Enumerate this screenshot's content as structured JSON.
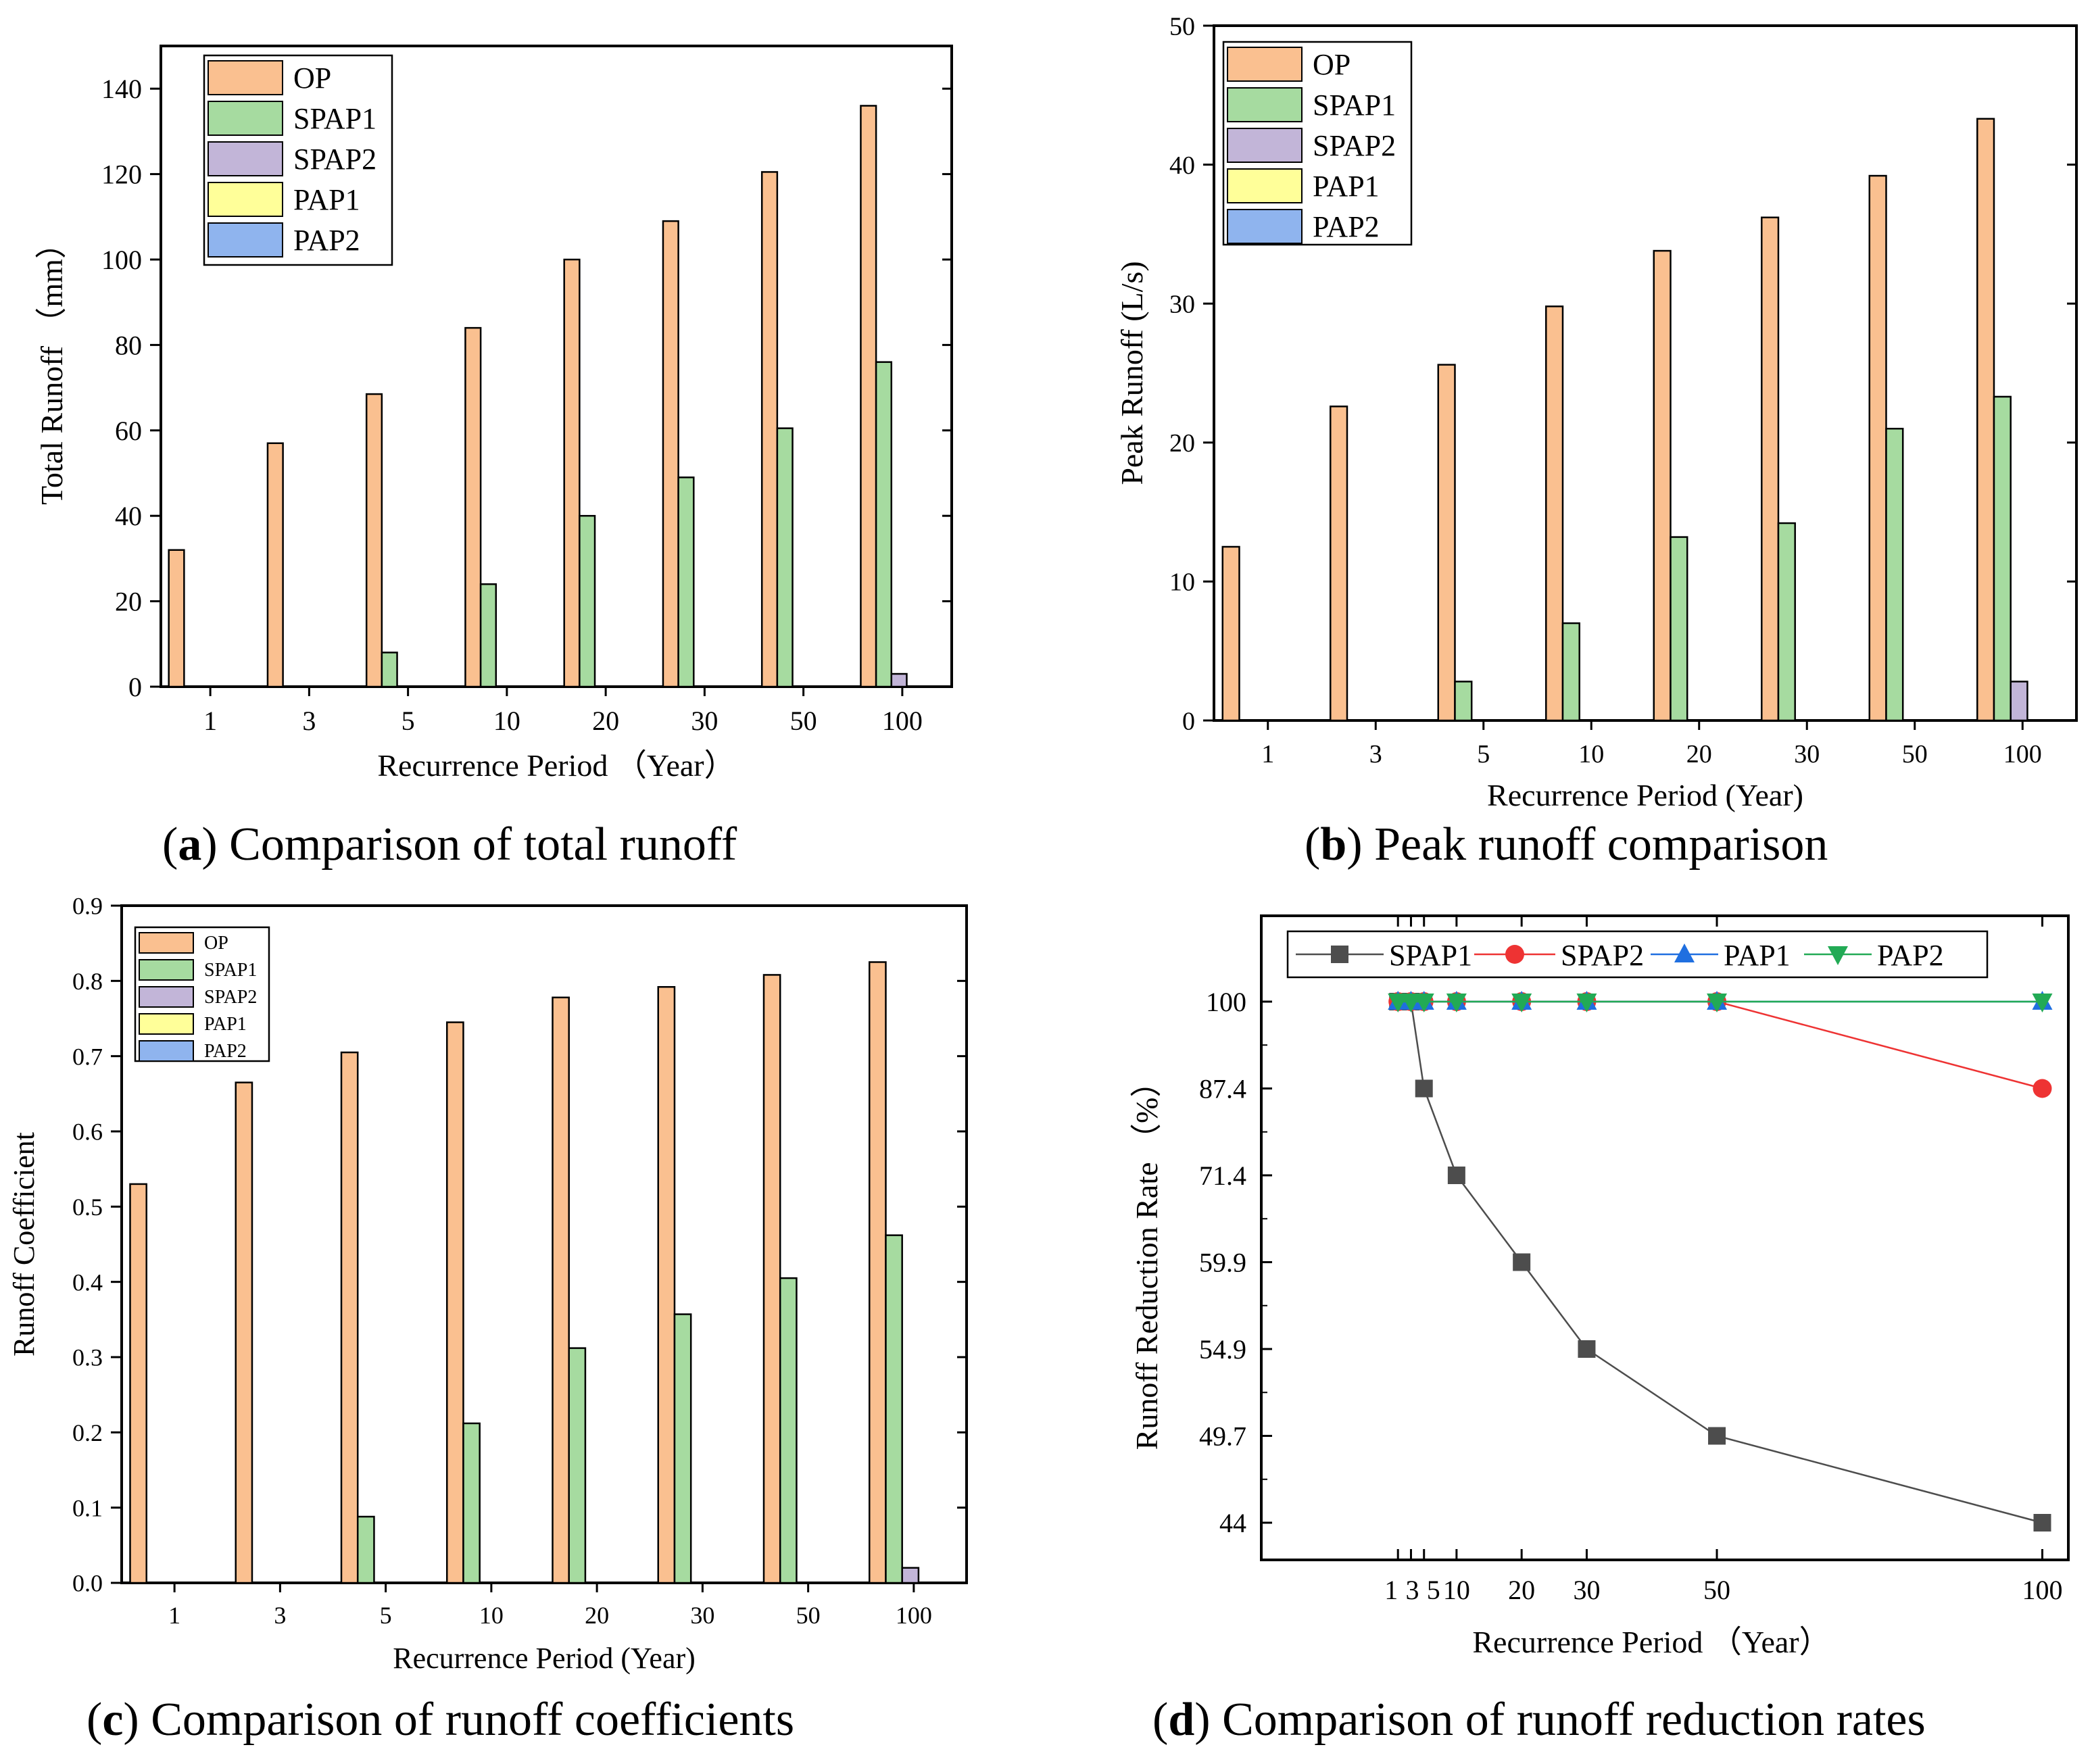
{
  "colors": {
    "OP": "#FAC090",
    "SPAP1": "#A6DBA0",
    "SPAP2": "#C2B5D8",
    "PAP1": "#FFFF99",
    "PAP2": "#8FB4EE",
    "line_SPAP1": "#4D4D4D",
    "line_SPAP2": "#EE3333",
    "line_PAP1": "#1F6FE0",
    "line_PAP2": "#22AA55"
  },
  "captions": {
    "a": {
      "letter": "a",
      "text": " Comparison of total runoff"
    },
    "b": {
      "letter": "b",
      "text": " Peak runoff comparison"
    },
    "c": {
      "letter": "c",
      "text": " Comparison of runoff coefficients"
    },
    "d": {
      "letter": "d",
      "text": " Comparison of runoff reduction rates"
    }
  },
  "chart_data": [
    {
      "id": "a",
      "type": "bar",
      "xlabel": "Recurrence Period （Year）",
      "ylabel": "Total Runoff （mm）",
      "categories": [
        "1",
        "3",
        "5",
        "10",
        "20",
        "30",
        "50",
        "100"
      ],
      "ylim": [
        0,
        150
      ],
      "yticks": [
        0,
        20,
        40,
        60,
        80,
        100,
        120,
        140
      ],
      "ytick_labels": [
        "0",
        "20",
        "40",
        "60",
        "80",
        "100",
        "120",
        "140"
      ],
      "legend": [
        "OP",
        "SPAP1",
        "SPAP2",
        "PAP1",
        "PAP2"
      ],
      "series": [
        {
          "name": "OP",
          "values": [
            32,
            57,
            68.5,
            84,
            100,
            109,
            120.5,
            136
          ]
        },
        {
          "name": "SPAP1",
          "values": [
            0,
            0,
            8,
            24,
            40,
            49,
            60.5,
            76
          ]
        },
        {
          "name": "SPAP2",
          "values": [
            0,
            0,
            0,
            0,
            0,
            0,
            0,
            3
          ]
        },
        {
          "name": "PAP1",
          "values": [
            0,
            0,
            0,
            0,
            0,
            0,
            0,
            0
          ]
        },
        {
          "name": "PAP2",
          "values": [
            0,
            0,
            0,
            0,
            0,
            0,
            0,
            0
          ]
        }
      ]
    },
    {
      "id": "b",
      "type": "bar",
      "xlabel": "Recurrence Period (Year)",
      "ylabel": "Peak Runoff (L/s)",
      "categories": [
        "1",
        "3",
        "5",
        "10",
        "20",
        "30",
        "50",
        "100"
      ],
      "ylim": [
        0,
        50
      ],
      "yticks": [
        0,
        10,
        20,
        30,
        40,
        50
      ],
      "ytick_labels": [
        "0",
        "10",
        "20",
        "30",
        "40",
        "50"
      ],
      "legend": [
        "OP",
        "SPAP1",
        "SPAP2",
        "PAP1",
        "PAP2"
      ],
      "series": [
        {
          "name": "OP",
          "values": [
            12.5,
            22.6,
            25.6,
            29.8,
            33.8,
            36.2,
            39.2,
            43.3
          ]
        },
        {
          "name": "SPAP1",
          "values": [
            0,
            0,
            2.8,
            7,
            13.2,
            14.2,
            21,
            23.3
          ]
        },
        {
          "name": "SPAP2",
          "values": [
            0,
            0,
            0,
            0,
            0,
            0,
            0,
            2.8
          ]
        },
        {
          "name": "PAP1",
          "values": [
            0,
            0,
            0,
            0,
            0,
            0,
            0,
            0
          ]
        },
        {
          "name": "PAP2",
          "values": [
            0,
            0,
            0,
            0,
            0,
            0,
            0,
            0
          ]
        }
      ]
    },
    {
      "id": "c",
      "type": "bar",
      "xlabel": "Recurrence Period (Year)",
      "ylabel": "Runoff Coefficient",
      "categories": [
        "1",
        "3",
        "5",
        "10",
        "20",
        "30",
        "50",
        "100"
      ],
      "ylim": [
        0,
        0.9
      ],
      "yticks": [
        0,
        0.1,
        0.2,
        0.3,
        0.4,
        0.5,
        0.6,
        0.7,
        0.8,
        0.9
      ],
      "ytick_labels": [
        "0.0",
        "0.1",
        "0.2",
        "0.3",
        "0.4",
        "0.5",
        "0.6",
        "0.7",
        "0.8",
        "0.9"
      ],
      "legend": [
        "OP",
        "SPAP1",
        "SPAP2",
        "PAP1",
        "PAP2"
      ],
      "series": [
        {
          "name": "OP",
          "values": [
            0.53,
            0.665,
            0.705,
            0.745,
            0.778,
            0.792,
            0.808,
            0.825
          ]
        },
        {
          "name": "SPAP1",
          "values": [
            0,
            0,
            0.088,
            0.212,
            0.312,
            0.357,
            0.405,
            0.462
          ]
        },
        {
          "name": "SPAP2",
          "values": [
            0,
            0,
            0,
            0,
            0,
            0,
            0,
            0.02
          ]
        },
        {
          "name": "PAP1",
          "values": [
            0,
            0,
            0,
            0,
            0,
            0,
            0,
            0
          ]
        },
        {
          "name": "PAP2",
          "values": [
            0,
            0,
            0,
            0,
            0,
            0,
            0,
            0
          ]
        }
      ]
    },
    {
      "id": "d",
      "type": "line",
      "xlabel": "Recurrence Period （Year）",
      "ylabel": "Runoff Reduction Rate （%）",
      "x": [
        1,
        3,
        5,
        10,
        20,
        30,
        50,
        100
      ],
      "xticks": [
        1,
        3,
        5,
        10,
        20,
        30,
        50,
        100
      ],
      "xtick_labels": [
        "1",
        "3",
        "5",
        "10",
        "20",
        "30",
        "50",
        "100"
      ],
      "ytick_labels": [
        "44",
        "49.7",
        "54.9",
        "59.9",
        "71.4",
        "87.4",
        "100"
      ],
      "legend": [
        "SPAP1",
        "SPAP2",
        "PAP1",
        "PAP2"
      ],
      "series": [
        {
          "name": "SPAP1",
          "values": [
            100,
            100,
            87.4,
            71.4,
            59.9,
            54.9,
            49.7,
            44
          ],
          "marker": "square"
        },
        {
          "name": "SPAP2",
          "values": [
            100,
            100,
            100,
            100,
            100,
            100,
            100,
            87.4
          ],
          "marker": "circle"
        },
        {
          "name": "PAP1",
          "values": [
            100,
            100,
            100,
            100,
            100,
            100,
            100,
            100
          ],
          "marker": "triangle-up"
        },
        {
          "name": "PAP2",
          "values": [
            100,
            100,
            100,
            100,
            100,
            100,
            100,
            100
          ],
          "marker": "triangle-down"
        }
      ]
    }
  ]
}
